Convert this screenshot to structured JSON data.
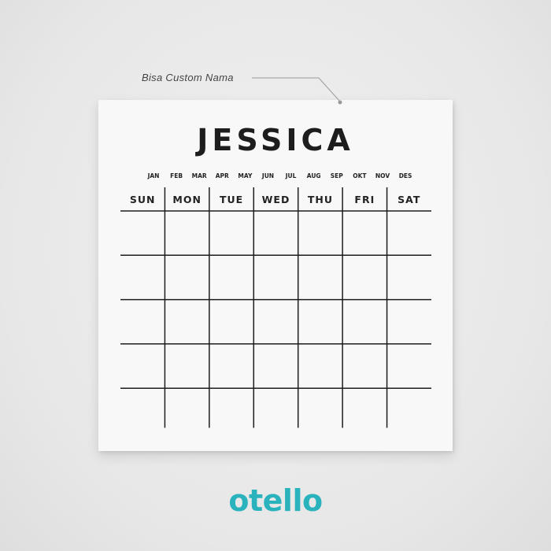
{
  "callout": {
    "text": "Bisa Custom Nama"
  },
  "calendar": {
    "name": "JESSICA",
    "months": [
      "JAN",
      "FEB",
      "MAR",
      "APR",
      "MAY",
      "JUN",
      "JUL",
      "AUG",
      "SEP",
      "OKT",
      "NOV",
      "DES"
    ],
    "days": [
      "SUN",
      "MON",
      "TUE",
      "WED",
      "THU",
      "FRI",
      "SAT"
    ],
    "week_rows": 5
  },
  "brand": {
    "logo_text": "otello",
    "color": "#2bb3bd"
  }
}
